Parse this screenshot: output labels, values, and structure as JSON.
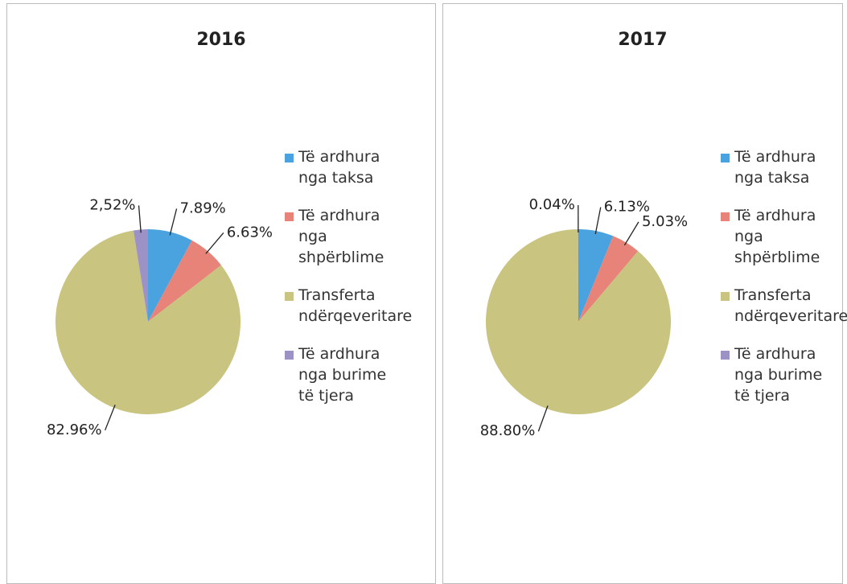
{
  "chart_data": [
    {
      "type": "pie",
      "title": "2016",
      "categories": [
        "Të ardhura nga taksa",
        "Të ardhura nga shpërblime",
        "Transferta ndërqeveritare",
        "Të ardhura nga burime të tjera"
      ],
      "values": [
        7.89,
        6.63,
        82.96,
        2.52
      ],
      "value_labels": [
        "7.89%",
        "6.63%",
        "82.96%",
        "2,52%"
      ],
      "colors": [
        "#4aa3df",
        "#e8837a",
        "#c9c47f",
        "#9d92c6"
      ]
    },
    {
      "type": "pie",
      "title": "2017",
      "categories": [
        "Të ardhura nga taksa",
        "Të ardhura nga shpërblime",
        "Transferta ndërqeveritare",
        "Të ardhura nga burime të tjera"
      ],
      "values": [
        6.13,
        5.03,
        88.8,
        0.04
      ],
      "value_labels": [
        "6.13%",
        "5.03%",
        "88.80%",
        "0.04%"
      ],
      "colors": [
        "#4aa3df",
        "#e8837a",
        "#c9c47f",
        "#9d92c6"
      ]
    }
  ]
}
